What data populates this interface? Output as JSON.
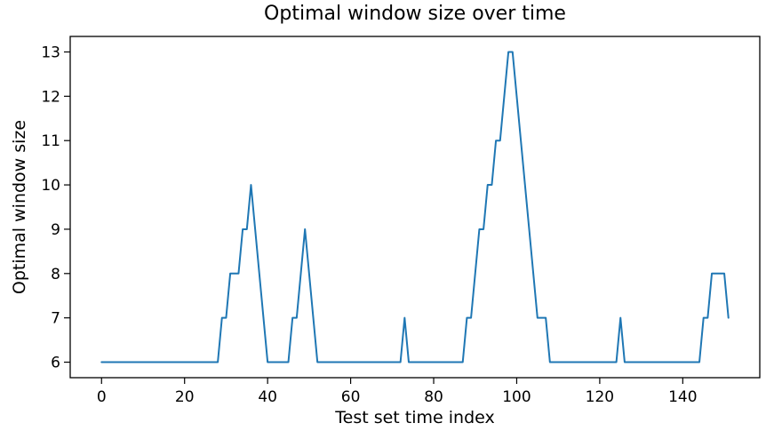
{
  "figure": {
    "title": "Optimal window size over time"
  },
  "chart_data": {
    "type": "line",
    "title": "Optimal window size over time",
    "xlabel": "Test set time index",
    "ylabel": "Optimal window size",
    "x_start": 0,
    "x_step": 1,
    "xlim": [
      -7.55,
      158.55
    ],
    "ylim": [
      5.65,
      13.35
    ],
    "x_ticks": [
      0,
      20,
      40,
      60,
      80,
      100,
      120,
      140
    ],
    "y_ticks": [
      6,
      7,
      8,
      9,
      10,
      11,
      12,
      13
    ],
    "grid": false,
    "legend": "none",
    "line_color": "#1f77b4",
    "series": [
      {
        "name": "optimal window size",
        "values": [
          6,
          6,
          6,
          6,
          6,
          6,
          6,
          6,
          6,
          6,
          6,
          6,
          6,
          6,
          6,
          6,
          6,
          6,
          6,
          6,
          6,
          6,
          6,
          6,
          6,
          6,
          6,
          6,
          6,
          7,
          7,
          8,
          8,
          8,
          9,
          9,
          10,
          9,
          8,
          7,
          6,
          6,
          6,
          6,
          6,
          6,
          7,
          7,
          8,
          9,
          8,
          7,
          6,
          6,
          6,
          6,
          6,
          6,
          6,
          6,
          6,
          6,
          6,
          6,
          6,
          6,
          6,
          6,
          6,
          6,
          6,
          6,
          6,
          7,
          6,
          6,
          6,
          6,
          6,
          6,
          6,
          6,
          6,
          6,
          6,
          6,
          6,
          6,
          7,
          7,
          8,
          9,
          9,
          10,
          10,
          11,
          11,
          12,
          13,
          13,
          12,
          11,
          10,
          9,
          8,
          7,
          7,
          7,
          6,
          6,
          6,
          6,
          6,
          6,
          6,
          6,
          6,
          6,
          6,
          6,
          6,
          6,
          6,
          6,
          6,
          7,
          6,
          6,
          6,
          6,
          6,
          6,
          6,
          6,
          6,
          6,
          6,
          6,
          6,
          6,
          6,
          6,
          6,
          6,
          6,
          7,
          7,
          8,
          8,
          8,
          8,
          7
        ]
      }
    ]
  },
  "colors": {
    "line": "#1f77b4",
    "axes": "#000000",
    "background": "#ffffff"
  }
}
